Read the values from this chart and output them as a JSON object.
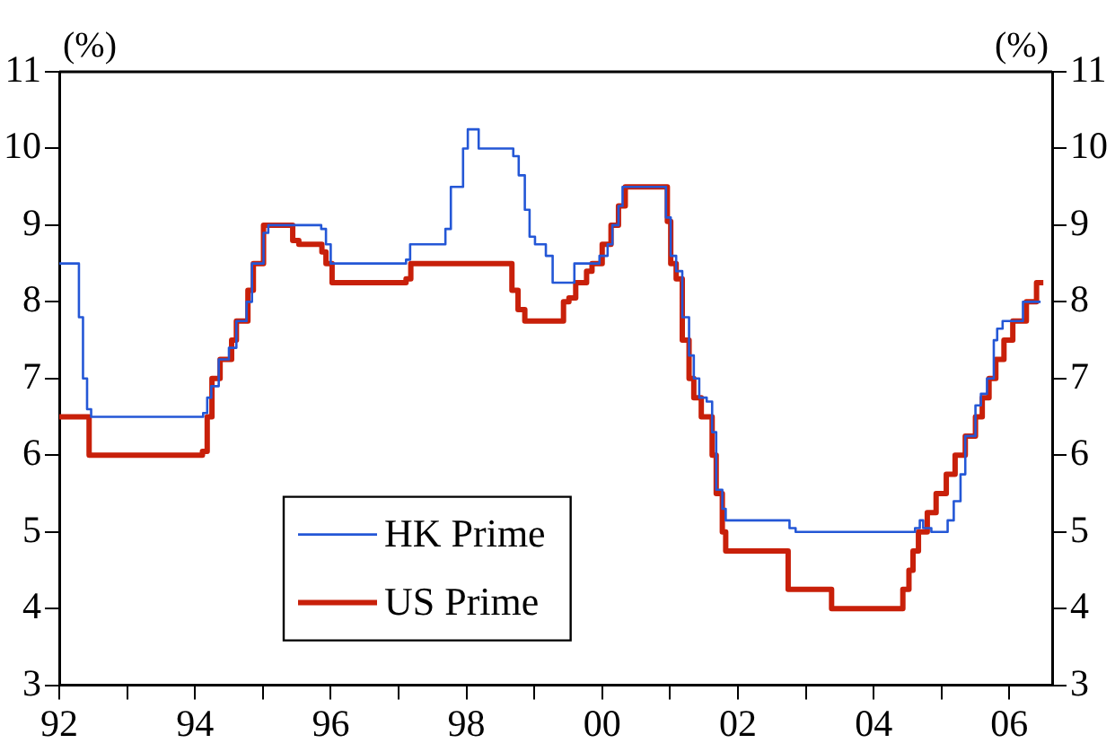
{
  "chart_data": {
    "type": "step",
    "ylabel": "(%)",
    "y2label": "(%)",
    "xlim": [
      1992,
      2006.63
    ],
    "xticks": [
      {
        "value": 1992,
        "label": "92"
      },
      {
        "value": 1993,
        "label": null
      },
      {
        "value": 1994,
        "label": "94"
      },
      {
        "value": 1995,
        "label": null
      },
      {
        "value": 1996,
        "label": "96"
      },
      {
        "value": 1997,
        "label": null
      },
      {
        "value": 1998,
        "label": "98"
      },
      {
        "value": 1999,
        "label": null
      },
      {
        "value": 2000,
        "label": "00"
      },
      {
        "value": 2001,
        "label": null
      },
      {
        "value": 2002,
        "label": "02"
      },
      {
        "value": 2003,
        "label": null
      },
      {
        "value": 2004,
        "label": "04"
      },
      {
        "value": 2005,
        "label": null
      },
      {
        "value": 2006,
        "label": "06"
      }
    ],
    "ylim": [
      3,
      11
    ],
    "yticks": [
      3,
      4,
      5,
      6,
      7,
      8,
      9,
      10,
      11
    ],
    "y2lim": [
      3,
      11
    ],
    "y2ticks": [
      3,
      4,
      5,
      6,
      7,
      8,
      9,
      10,
      11
    ],
    "grid": false,
    "legend": "bottom left",
    "marker": "none",
    "line_style": "solid",
    "series": [
      {
        "name": "HK Prime",
        "color": "#2457d6",
        "x": [
          1992,
          1992.29,
          1992.35,
          1992.41,
          1992.47,
          1994.12,
          1994.18,
          1994.24,
          1994.35,
          1994.5,
          1994.61,
          1994.76,
          1994.84,
          1995.01,
          1995.08,
          1995.86,
          1995.93,
          1996.0,
          1997.11,
          1997.17,
          1997.69,
          1997.77,
          1997.95,
          1998.02,
          1998.18,
          1998.69,
          1998.77,
          1998.86,
          1998.93,
          1999.01,
          1999.17,
          1999.27,
          1999.59,
          1999.96,
          2000.08,
          2000.15,
          2000.24,
          2000.3,
          2000.94,
          2001.01,
          2001.09,
          2001.18,
          2001.28,
          2001.35,
          2001.43,
          2001.54,
          2001.62,
          2001.68,
          2001.77,
          2001.82,
          2002.76,
          2002.85,
          2004.61,
          2004.68,
          2004.73,
          2004.85,
          2005.09,
          2005.18,
          2005.28,
          2005.35,
          2005.5,
          2005.58,
          2005.67,
          2005.77,
          2005.82,
          2005.9,
          2006.2,
          2006.46
        ],
        "values": [
          8.5,
          7.8,
          7.0,
          6.6,
          6.5,
          6.55,
          6.75,
          6.9,
          7.25,
          7.4,
          7.75,
          8.0,
          8.5,
          8.9,
          9.0,
          8.95,
          8.75,
          8.5,
          8.55,
          8.75,
          8.95,
          9.5,
          10.0,
          10.25,
          10.0,
          9.9,
          9.65,
          9.2,
          8.85,
          8.75,
          8.6,
          8.25,
          8.5,
          8.6,
          8.75,
          9.0,
          9.25,
          9.5,
          9.1,
          8.6,
          8.4,
          7.8,
          7.3,
          7.0,
          6.75,
          6.7,
          6.3,
          5.55,
          5.3,
          5.15,
          5.05,
          5.0,
          5.05,
          5.15,
          5.05,
          5.0,
          5.15,
          5.4,
          5.75,
          6.25,
          6.65,
          6.8,
          7.0,
          7.5,
          7.65,
          7.75,
          8.0,
          8.0
        ]
      },
      {
        "name": "US Prime",
        "color": "#c8200a",
        "x": [
          1992,
          1992.44,
          1994.11,
          1994.18,
          1994.25,
          1994.37,
          1994.54,
          1994.61,
          1994.78,
          1994.86,
          1995.01,
          1995.44,
          1995.53,
          1995.87,
          1995.93,
          1996.02,
          1997.11,
          1997.18,
          1998.67,
          1998.76,
          1998.86,
          1999.43,
          1999.51,
          1999.61,
          1999.77,
          1999.85,
          2000.0,
          2000.13,
          2000.24,
          2000.34,
          2000.96,
          2001.01,
          2001.09,
          2001.18,
          2001.28,
          2001.35,
          2001.46,
          2001.62,
          2001.68,
          2001.77,
          2001.82,
          2002.74,
          2003.38,
          2004.43,
          2004.52,
          2004.58,
          2004.66,
          2004.79,
          2004.92,
          2005.07,
          2005.2,
          2005.35,
          2005.5,
          2005.6,
          2005.7,
          2005.8,
          2005.92,
          2006.05,
          2006.25,
          2006.4,
          2006.5
        ],
        "values": [
          6.5,
          6.0,
          6.05,
          6.5,
          7.0,
          7.25,
          7.5,
          7.75,
          8.15,
          8.5,
          9.0,
          8.8,
          8.75,
          8.65,
          8.5,
          8.25,
          8.3,
          8.5,
          8.15,
          7.9,
          7.75,
          8.0,
          8.05,
          8.25,
          8.4,
          8.5,
          8.75,
          9.0,
          9.25,
          9.5,
          9.05,
          8.5,
          8.3,
          7.5,
          7.0,
          6.75,
          6.5,
          6.0,
          5.5,
          5.0,
          4.75,
          4.25,
          4.0,
          4.25,
          4.5,
          4.75,
          5.0,
          5.25,
          5.5,
          5.75,
          6.0,
          6.25,
          6.5,
          6.75,
          7.0,
          7.25,
          7.5,
          7.75,
          8.0,
          8.25,
          8.25
        ]
      }
    ]
  }
}
